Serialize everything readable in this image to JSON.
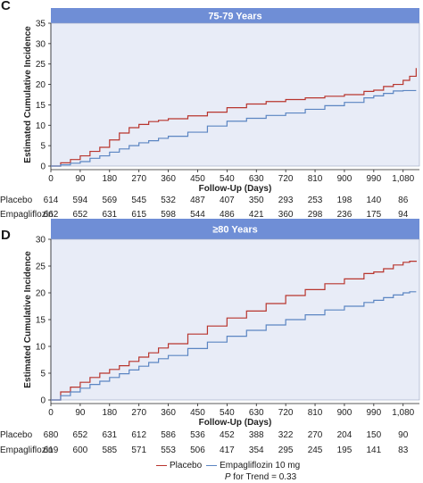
{
  "colors": {
    "placebo": "#b8352e",
    "empagliflozin": "#5b85c2",
    "title_bar": "#6f8ed6",
    "plot_bg": "#e8ecf7"
  },
  "legend": {
    "placebo": "Placebo",
    "empagliflozin": "Empagliflozin 10 mg",
    "p_prefix": "P",
    "p_text": " for Trend = 0.33"
  },
  "chart_data": [
    {
      "panel": "C",
      "type": "line",
      "title": "75-79 Years",
      "xlabel": "Follow-Up (Days)",
      "ylabel": "Estimated Cumulative Incidence",
      "xticks": [
        0,
        90,
        180,
        270,
        360,
        450,
        540,
        630,
        720,
        810,
        900,
        990,
        1080
      ],
      "xtick_labels": [
        "0",
        "90",
        "180",
        "270",
        "360",
        "450",
        "540",
        "630",
        "720",
        "810",
        "900",
        "990",
        "1,080"
      ],
      "yticks": [
        0,
        5,
        10,
        15,
        20,
        25,
        30,
        35
      ],
      "xlim": [
        0,
        1130
      ],
      "ylim": [
        0,
        35
      ],
      "series": [
        {
          "name": "Placebo",
          "x": [
            0,
            30,
            60,
            90,
            120,
            150,
            180,
            210,
            240,
            270,
            300,
            330,
            360,
            420,
            480,
            540,
            600,
            660,
            720,
            780,
            840,
            900,
            960,
            990,
            1020,
            1050,
            1080,
            1100,
            1120
          ],
          "y": [
            0,
            0.8,
            1.6,
            2.5,
            3.6,
            4.6,
            6.4,
            8.1,
            9.4,
            10.2,
            10.9,
            11.2,
            11.6,
            12.3,
            13.2,
            14.3,
            15.2,
            15.8,
            16.3,
            16.7,
            17.1,
            17.5,
            18.3,
            18.6,
            19.5,
            20.0,
            21.0,
            22.0,
            24.0
          ]
        },
        {
          "name": "Empagliflozin 10 mg",
          "x": [
            0,
            30,
            60,
            90,
            120,
            150,
            180,
            210,
            240,
            270,
            300,
            330,
            360,
            420,
            480,
            540,
            600,
            660,
            720,
            780,
            840,
            900,
            960,
            990,
            1020,
            1050,
            1080,
            1100,
            1120
          ],
          "y": [
            0,
            0.3,
            0.7,
            1.1,
            1.9,
            2.5,
            3.4,
            4.2,
            5.0,
            5.7,
            6.2,
            6.8,
            7.3,
            8.3,
            9.8,
            11.0,
            11.7,
            12.4,
            13.0,
            13.9,
            14.8,
            15.6,
            16.7,
            17.2,
            17.8,
            18.4,
            18.5,
            18.5,
            18.5
          ]
        }
      ],
      "risk_table": {
        "rows": [
          {
            "label": "Placebo",
            "values": [
              "614",
              "594",
              "569",
              "545",
              "532",
              "487",
              "407",
              "350",
              "293",
              "253",
              "198",
              "140",
              "86"
            ]
          },
          {
            "label": "Empagliflozin",
            "values": [
              "662",
              "652",
              "631",
              "615",
              "598",
              "544",
              "486",
              "421",
              "360",
              "298",
              "236",
              "175",
              "94"
            ]
          }
        ]
      }
    },
    {
      "panel": "D",
      "type": "line",
      "title": "≥80 Years",
      "xlabel": "Follow-Up (Days)",
      "ylabel": "Estimated Cumulative Incidence",
      "xticks": [
        0,
        90,
        180,
        270,
        360,
        450,
        540,
        630,
        720,
        810,
        900,
        990,
        1080
      ],
      "xtick_labels": [
        "0",
        "90",
        "180",
        "270",
        "360",
        "450",
        "540",
        "630",
        "720",
        "810",
        "900",
        "990",
        "1,080"
      ],
      "yticks": [
        0,
        5,
        10,
        15,
        20,
        25,
        30
      ],
      "xlim": [
        0,
        1130
      ],
      "ylim": [
        0,
        30
      ],
      "series": [
        {
          "name": "Placebo",
          "x": [
            0,
            30,
            60,
            90,
            120,
            150,
            180,
            210,
            240,
            270,
            300,
            330,
            360,
            420,
            480,
            540,
            600,
            660,
            720,
            780,
            840,
            900,
            960,
            990,
            1020,
            1050,
            1080,
            1100,
            1120
          ],
          "y": [
            0,
            1.5,
            2.4,
            3.3,
            4.2,
            5.0,
            5.7,
            6.4,
            7.2,
            8.0,
            8.8,
            9.7,
            10.5,
            12.3,
            13.8,
            15.3,
            16.6,
            18.0,
            19.5,
            20.6,
            21.7,
            22.6,
            23.6,
            23.9,
            24.5,
            25.2,
            25.7,
            25.9,
            26.0
          ]
        },
        {
          "name": "Empagliflozin 10 mg",
          "x": [
            0,
            30,
            60,
            90,
            120,
            150,
            180,
            210,
            240,
            270,
            300,
            330,
            360,
            420,
            480,
            540,
            600,
            660,
            720,
            780,
            840,
            900,
            960,
            990,
            1020,
            1050,
            1080,
            1100,
            1120
          ],
          "y": [
            0,
            0.8,
            1.5,
            2.2,
            2.9,
            3.5,
            4.2,
            4.9,
            5.6,
            6.3,
            7.0,
            7.7,
            8.3,
            9.6,
            10.8,
            11.9,
            13.0,
            14.0,
            15.0,
            15.9,
            16.8,
            17.5,
            18.2,
            18.6,
            19.1,
            19.6,
            20.0,
            20.2,
            20.2
          ]
        }
      ],
      "risk_table": {
        "rows": [
          {
            "label": "Placebo",
            "values": [
              "680",
              "652",
              "631",
              "612",
              "586",
              "536",
              "452",
              "388",
              "322",
              "270",
              "204",
              "150",
              "90"
            ]
          },
          {
            "label": "Empagliflozin",
            "values": [
              "619",
              "600",
              "585",
              "571",
              "553",
              "506",
              "417",
              "354",
              "295",
              "245",
              "195",
              "141",
              "83"
            ]
          }
        ]
      }
    }
  ]
}
